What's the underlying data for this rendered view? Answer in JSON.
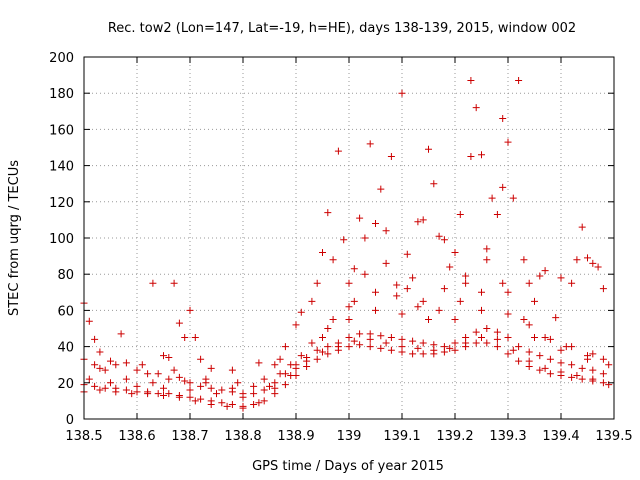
{
  "chart_data": {
    "type": "scatter",
    "title": "Rec. tow2 (Lon=147, Lat=-19, h=HE), days 138-139, 2015, window 002",
    "xlabel": "GPS time / Days of year 2015",
    "ylabel": "STEC from uqrg / TECUs",
    "xlim": [
      138.5,
      139.5
    ],
    "ylim": [
      0,
      200
    ],
    "x_ticks": [
      138.5,
      138.6,
      138.7,
      138.8,
      138.9,
      139.0,
      139.1,
      139.2,
      139.3,
      139.4,
      139.5
    ],
    "x_tick_labels": [
      "138.5",
      "138.6",
      "138.7",
      "138.8",
      "138.9",
      "139",
      "139.1",
      "139.2",
      "139.3",
      "139.4",
      "139.5"
    ],
    "y_ticks": [
      0,
      20,
      40,
      60,
      80,
      100,
      120,
      140,
      160,
      180,
      200
    ],
    "y_tick_labels": [
      "0",
      "20",
      "40",
      "60",
      "80",
      "100",
      "120",
      "140",
      "160",
      "180",
      "200"
    ],
    "grid": true,
    "marker": "+",
    "marker_color": "#cc0000",
    "series": [
      {
        "points": [
          [
            138.5,
            64
          ],
          [
            138.51,
            54
          ],
          [
            138.52,
            44
          ],
          [
            138.53,
            37
          ],
          [
            138.57,
            47
          ],
          [
            138.63,
            75
          ],
          [
            138.65,
            35
          ],
          [
            138.66,
            34
          ],
          [
            138.67,
            75
          ],
          [
            138.68,
            53
          ],
          [
            138.69,
            45
          ],
          [
            138.7,
            60
          ],
          [
            138.71,
            45
          ],
          [
            138.72,
            33
          ],
          [
            138.74,
            28
          ],
          [
            138.78,
            27
          ],
          [
            138.83,
            31
          ],
          [
            138.86,
            30
          ],
          [
            138.87,
            33
          ],
          [
            138.88,
            40
          ],
          [
            138.9,
            52
          ],
          [
            138.91,
            59
          ],
          [
            138.93,
            65
          ],
          [
            138.94,
            75
          ],
          [
            138.95,
            92
          ],
          [
            138.96,
            114
          ],
          [
            138.97,
            88
          ],
          [
            138.98,
            148
          ],
          [
            138.99,
            99
          ],
          [
            139.0,
            75
          ],
          [
            139.01,
            83
          ],
          [
            139.02,
            111
          ],
          [
            139.03,
            100
          ],
          [
            139.04,
            152
          ],
          [
            139.05,
            108
          ],
          [
            139.06,
            127
          ],
          [
            139.07,
            104
          ],
          [
            139.08,
            145
          ],
          [
            139.09,
            74
          ],
          [
            139.1,
            180
          ],
          [
            139.11,
            91
          ],
          [
            139.12,
            78
          ],
          [
            139.13,
            109
          ],
          [
            139.14,
            110
          ],
          [
            139.15,
            149
          ],
          [
            139.16,
            130
          ],
          [
            139.17,
            101
          ],
          [
            139.18,
            99
          ],
          [
            139.19,
            84
          ],
          [
            139.2,
            92
          ],
          [
            139.21,
            113
          ],
          [
            139.22,
            79
          ],
          [
            139.23,
            187
          ],
          [
            139.23,
            145
          ],
          [
            139.24,
            172
          ],
          [
            139.25,
            146
          ],
          [
            139.26,
            94
          ],
          [
            139.27,
            122
          ],
          [
            139.28,
            113
          ],
          [
            139.29,
            166
          ],
          [
            139.29,
            128
          ],
          [
            139.3,
            153
          ],
          [
            139.31,
            122
          ],
          [
            139.32,
            187
          ],
          [
            139.33,
            88
          ],
          [
            139.34,
            75
          ],
          [
            139.35,
            65
          ],
          [
            139.36,
            79
          ],
          [
            139.37,
            82
          ],
          [
            139.39,
            56
          ],
          [
            139.4,
            78
          ],
          [
            139.42,
            75
          ],
          [
            139.43,
            88
          ],
          [
            139.44,
            106
          ],
          [
            139.45,
            89
          ],
          [
            139.46,
            86
          ],
          [
            139.47,
            84
          ],
          [
            139.48,
            72
          ],
          [
            138.5,
            33
          ],
          [
            138.52,
            30
          ],
          [
            138.54,
            27
          ],
          [
            138.56,
            30
          ],
          [
            138.58,
            31
          ],
          [
            138.6,
            27
          ],
          [
            138.62,
            25
          ],
          [
            138.64,
            25
          ],
          [
            138.66,
            22
          ],
          [
            138.68,
            23
          ],
          [
            138.7,
            20
          ],
          [
            138.72,
            18
          ],
          [
            138.74,
            17
          ],
          [
            138.76,
            16
          ],
          [
            138.78,
            15
          ],
          [
            138.8,
            14
          ],
          [
            138.82,
            14
          ],
          [
            138.84,
            16
          ],
          [
            138.86,
            20
          ],
          [
            138.88,
            25
          ],
          [
            138.9,
            30
          ],
          [
            138.92,
            34
          ],
          [
            138.94,
            38
          ],
          [
            138.96,
            40
          ],
          [
            138.98,
            42
          ],
          [
            139.0,
            45
          ],
          [
            139.02,
            47
          ],
          [
            139.04,
            47
          ],
          [
            139.06,
            46
          ],
          [
            139.08,
            45
          ],
          [
            139.1,
            44
          ],
          [
            139.12,
            43
          ],
          [
            139.14,
            42
          ],
          [
            139.16,
            41
          ],
          [
            139.18,
            40
          ],
          [
            139.2,
            42
          ],
          [
            139.22,
            45
          ],
          [
            139.24,
            48
          ],
          [
            139.26,
            50
          ],
          [
            139.28,
            48
          ],
          [
            139.3,
            45
          ],
          [
            139.32,
            40
          ],
          [
            139.34,
            37
          ],
          [
            139.36,
            35
          ],
          [
            139.38,
            33
          ],
          [
            139.4,
            31
          ],
          [
            139.42,
            30
          ],
          [
            139.44,
            28
          ],
          [
            139.46,
            27
          ],
          [
            139.48,
            25
          ],
          [
            138.5,
            19
          ],
          [
            138.52,
            18
          ],
          [
            138.54,
            17
          ],
          [
            138.56,
            17
          ],
          [
            138.58,
            16
          ],
          [
            138.6,
            15
          ],
          [
            138.62,
            15
          ],
          [
            138.64,
            14
          ],
          [
            138.66,
            14
          ],
          [
            138.68,
            13
          ],
          [
            138.7,
            12
          ],
          [
            138.72,
            11
          ],
          [
            138.74,
            10
          ],
          [
            138.76,
            9
          ],
          [
            138.78,
            8
          ],
          [
            138.8,
            7
          ],
          [
            138.82,
            8
          ],
          [
            138.84,
            10
          ],
          [
            138.86,
            14
          ],
          [
            138.88,
            19
          ],
          [
            138.9,
            24
          ],
          [
            138.92,
            29
          ],
          [
            138.94,
            33
          ],
          [
            138.96,
            36
          ],
          [
            138.98,
            38
          ],
          [
            139.0,
            40
          ],
          [
            139.02,
            41
          ],
          [
            139.04,
            40
          ],
          [
            139.06,
            39
          ],
          [
            139.08,
            38
          ],
          [
            139.1,
            37
          ],
          [
            139.12,
            36
          ],
          [
            139.14,
            36
          ],
          [
            139.16,
            36
          ],
          [
            139.18,
            37
          ],
          [
            139.2,
            38
          ],
          [
            139.22,
            40
          ],
          [
            139.24,
            42
          ],
          [
            139.26,
            42
          ],
          [
            139.28,
            40
          ],
          [
            139.3,
            36
          ],
          [
            139.32,
            32
          ],
          [
            139.34,
            29
          ],
          [
            139.36,
            27
          ],
          [
            139.38,
            25
          ],
          [
            139.4,
            24
          ],
          [
            139.42,
            23
          ],
          [
            139.44,
            22
          ],
          [
            139.46,
            21
          ],
          [
            139.48,
            20
          ],
          [
            138.5,
            15
          ],
          [
            138.53,
            16
          ],
          [
            138.56,
            15
          ],
          [
            138.59,
            14
          ],
          [
            138.62,
            14
          ],
          [
            138.65,
            13
          ],
          [
            138.68,
            12
          ],
          [
            138.71,
            10
          ],
          [
            138.74,
            8
          ],
          [
            138.77,
            7
          ],
          [
            138.8,
            6
          ],
          [
            138.83,
            9
          ],
          [
            138.86,
            17
          ],
          [
            138.89,
            24
          ],
          [
            138.92,
            32
          ],
          [
            138.95,
            37
          ],
          [
            138.98,
            40
          ],
          [
            139.01,
            43
          ],
          [
            139.04,
            44
          ],
          [
            139.07,
            42
          ],
          [
            139.1,
            40
          ],
          [
            139.13,
            39
          ],
          [
            139.16,
            38
          ],
          [
            139.19,
            39
          ],
          [
            139.22,
            42
          ],
          [
            139.25,
            45
          ],
          [
            139.28,
            44
          ],
          [
            139.31,
            38
          ],
          [
            139.34,
            32
          ],
          [
            139.37,
            28
          ],
          [
            139.4,
            26
          ],
          [
            139.43,
            24
          ],
          [
            139.46,
            22
          ],
          [
            139.49,
            19
          ],
          [
            138.51,
            22
          ],
          [
            138.55,
            20
          ],
          [
            138.6,
            18
          ],
          [
            138.65,
            17
          ],
          [
            138.7,
            16
          ],
          [
            138.75,
            14
          ],
          [
            138.8,
            12
          ],
          [
            138.85,
            18
          ],
          [
            138.9,
            28
          ],
          [
            138.95,
            45
          ],
          [
            139.0,
            55
          ],
          [
            139.05,
            60
          ],
          [
            139.1,
            58
          ],
          [
            139.15,
            55
          ],
          [
            139.2,
            55
          ],
          [
            139.25,
            60
          ],
          [
            139.3,
            58
          ],
          [
            139.35,
            45
          ],
          [
            139.4,
            38
          ],
          [
            139.45,
            33
          ],
          [
            139.49,
            30
          ],
          [
            138.53,
            28
          ],
          [
            138.58,
            22
          ],
          [
            138.63,
            20
          ],
          [
            138.69,
            21
          ],
          [
            138.73,
            22
          ],
          [
            138.79,
            20
          ],
          [
            138.84,
            22
          ],
          [
            138.89,
            30
          ],
          [
            138.93,
            42
          ],
          [
            138.97,
            55
          ],
          [
            139.01,
            65
          ],
          [
            139.05,
            70
          ],
          [
            139.09,
            68
          ],
          [
            139.13,
            62
          ],
          [
            139.17,
            60
          ],
          [
            139.21,
            65
          ],
          [
            139.25,
            70
          ],
          [
            139.29,
            75
          ],
          [
            139.33,
            55
          ],
          [
            139.37,
            45
          ],
          [
            139.41,
            40
          ],
          [
            139.45,
            35
          ],
          [
            139.48,
            33
          ],
          [
            138.55,
            32
          ],
          [
            138.61,
            30
          ],
          [
            138.67,
            27
          ],
          [
            138.73,
            20
          ],
          [
            138.78,
            17
          ],
          [
            138.82,
            18
          ],
          [
            138.87,
            25
          ],
          [
            138.91,
            35
          ],
          [
            138.96,
            50
          ],
          [
            139.0,
            62
          ],
          [
            139.03,
            80
          ],
          [
            139.07,
            86
          ],
          [
            139.11,
            72
          ],
          [
            139.14,
            65
          ],
          [
            139.18,
            72
          ],
          [
            139.22,
            75
          ],
          [
            139.26,
            88
          ],
          [
            139.3,
            70
          ],
          [
            139.34,
            52
          ],
          [
            139.38,
            44
          ],
          [
            139.42,
            40
          ],
          [
            139.46,
            36
          ]
        ]
      }
    ]
  }
}
